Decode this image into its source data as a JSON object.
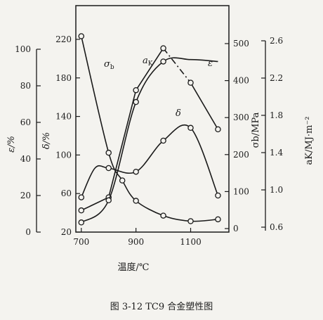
{
  "chart_data": {
    "type": "line",
    "xlabel": "温度/℃",
    "x_ticks": [
      "700",
      "900",
      "1100"
    ],
    "xlim": [
      680,
      1240
    ],
    "caption": "图 3-12   TC9 合金塑性图",
    "axes": {
      "eps": {
        "label": "ε/%",
        "lim": [
          0,
          100
        ],
        "ticks": [
          "0",
          "20",
          "40",
          "60",
          "80",
          "100"
        ]
      },
      "delta": {
        "label": "δ/%",
        "lim": [
          20,
          255
        ],
        "ticks": [
          "20",
          "60",
          "100",
          "140",
          "180",
          "220"
        ]
      },
      "sigma": {
        "label": "σb/MPa",
        "lim": [
          -5,
          520
        ],
        "ticks": [
          "0",
          "100",
          "200",
          "300",
          "400",
          "500"
        ]
      },
      "ak": {
        "label": "aK/MJ·m⁻²",
        "lim": [
          0.6,
          2.6
        ],
        "ticks": [
          "0.6",
          "1.0",
          "1.4",
          "1.8",
          "2.2",
          "2.6"
        ]
      }
    },
    "series": [
      {
        "name": "σb",
        "axis": "sigma",
        "points": [
          [
            700,
            520
          ],
          [
            800,
            205
          ],
          [
            850,
            130
          ],
          [
            900,
            75
          ],
          [
            1000,
            35
          ],
          [
            1100,
            20
          ],
          [
            1200,
            25
          ]
        ]
      },
      {
        "name": "aK",
        "axis": "ak",
        "points": [
          [
            700,
            0.78
          ],
          [
            800,
            0.92
          ],
          [
            900,
            2.07
          ],
          [
            1000,
            2.52
          ],
          [
            1100,
            2.15
          ],
          [
            1200,
            1.65
          ]
        ],
        "dashed_from": 1000,
        "dashed_to": 1100
      },
      {
        "name": "ε",
        "axis": "eps",
        "points": [
          [
            700,
            19
          ],
          [
            750,
            35
          ],
          [
            800,
            35
          ],
          [
            900,
            33
          ],
          [
            1000,
            50
          ],
          [
            1100,
            57
          ],
          [
            1200,
            20
          ]
        ],
        "markers": [
          [
            700,
            19
          ],
          [
            800,
            35
          ],
          [
            900,
            33
          ],
          [
            1000,
            50
          ],
          [
            1100,
            57
          ],
          [
            1200,
            20
          ]
        ]
      },
      {
        "name": "δ",
        "axis": "delta",
        "points": [
          [
            700,
            30
          ],
          [
            800,
            53
          ],
          [
            900,
            155
          ],
          [
            1000,
            197
          ],
          [
            1100,
            199
          ],
          [
            1200,
            197
          ]
        ],
        "markers": [
          [
            700,
            30
          ],
          [
            800,
            53
          ],
          [
            900,
            155
          ],
          [
            1000,
            197
          ]
        ]
      }
    ],
    "curve_labels": [
      "σb",
      "aK",
      "ε",
      "δ"
    ]
  }
}
